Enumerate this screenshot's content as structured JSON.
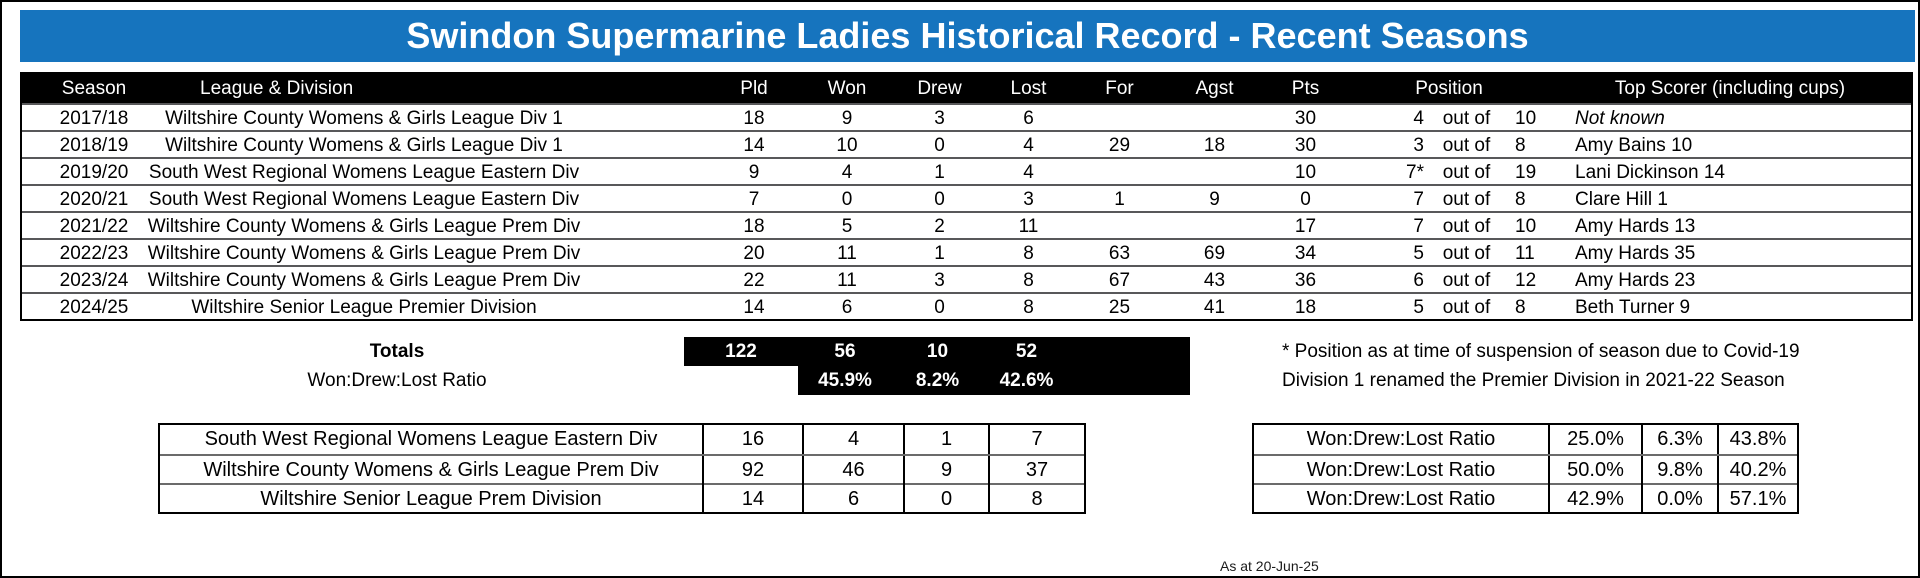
{
  "title": "Swindon Supermarine Ladies Historical Record - Recent Seasons",
  "colors": {
    "title_bar_blue": "#1674BE",
    "header_bg": "#000000",
    "totals_bg": "#000000"
  },
  "main_table": {
    "headers": {
      "season": "Season",
      "league": "League & Division",
      "pld": "Pld",
      "won": "Won",
      "drew": "Drew",
      "lost": "Lost",
      "for": "For",
      "agst": "Agst",
      "pts": "Pts",
      "position": "Position",
      "top_scorer": "Top Scorer (including cups)"
    },
    "out_of_label": "out of",
    "rows": [
      {
        "season": "2017/18",
        "league": "Wiltshire County Womens & Girls League Div 1",
        "pld": "18",
        "won": "9",
        "drew": "3",
        "lost": "6",
        "gf": "",
        "ga": "",
        "pts": "30",
        "pos": "4",
        "pos_of": "10",
        "scorer": "Not known"
      },
      {
        "season": "2018/19",
        "league": "Wiltshire County Womens & Girls League Div 1",
        "pld": "14",
        "won": "10",
        "drew": "0",
        "lost": "4",
        "gf": "29",
        "ga": "18",
        "pts": "30",
        "pos": "3",
        "pos_of": "8",
        "scorer": "Amy Bains 10"
      },
      {
        "season": "2019/20",
        "league": "South West Regional Womens League Eastern Div",
        "pld": "9",
        "won": "4",
        "drew": "1",
        "lost": "4",
        "gf": "",
        "ga": "",
        "pts": "10",
        "pos": "7*",
        "pos_of": "19",
        "scorer": "Lani Dickinson 14"
      },
      {
        "season": "2020/21",
        "league": "South West Regional Womens League Eastern Div",
        "pld": "7",
        "won": "0",
        "drew": "0",
        "lost": "3",
        "gf": "1",
        "ga": "9",
        "pts": "0",
        "pos": "7",
        "pos_of": "8",
        "scorer": "Clare Hill 1"
      },
      {
        "season": "2021/22",
        "league": "Wiltshire County Womens & Girls League Prem Div",
        "pld": "18",
        "won": "5",
        "drew": "2",
        "lost": "11",
        "gf": "",
        "ga": "",
        "pts": "17",
        "pos": "7",
        "pos_of": "10",
        "scorer": "Amy Hards 13"
      },
      {
        "season": "2022/23",
        "league": "Wiltshire County Womens & Girls League Prem Div",
        "pld": "20",
        "won": "11",
        "drew": "1",
        "lost": "8",
        "gf": "63",
        "ga": "69",
        "pts": "34",
        "pos": "5",
        "pos_of": "11",
        "scorer": "Amy Hards 35"
      },
      {
        "season": "2023/24",
        "league": "Wiltshire County Womens & Girls League Prem Div",
        "pld": "22",
        "won": "11",
        "drew": "3",
        "lost": "8",
        "gf": "67",
        "ga": "43",
        "pts": "36",
        "pos": "6",
        "pos_of": "12",
        "scorer": "Amy Hards 23"
      },
      {
        "season": "2024/25",
        "league": "Wiltshire Senior League Premier Division",
        "pld": "14",
        "won": "6",
        "drew": "0",
        "lost": "8",
        "gf": "25",
        "ga": "41",
        "pts": "18",
        "pos": "5",
        "pos_of": "8",
        "scorer": "Beth Turner 9"
      }
    ]
  },
  "totals": {
    "label": "Totals",
    "pld": "122",
    "won": "56",
    "drew": "10",
    "lost": "52"
  },
  "ratio": {
    "label": "Won:Drew:Lost Ratio",
    "won": "45.9%",
    "drew": "8.2%",
    "lost": "42.6%"
  },
  "notes": {
    "line1": "* Position as at time of suspension of season due to Covid-19",
    "line2": "Division 1 renamed the Premier Division in 2021-22 Season"
  },
  "league_summary": {
    "rows": [
      {
        "league": "South West Regional Womens League Eastern Div",
        "pld": "16",
        "won": "4",
        "drew": "1",
        "lost": "7"
      },
      {
        "league": "Wiltshire County Womens & Girls League Prem Div",
        "pld": "92",
        "won": "46",
        "drew": "9",
        "lost": "37"
      },
      {
        "league": "Wiltshire Senior League Prem Division",
        "pld": "14",
        "won": "6",
        "drew": "0",
        "lost": "8"
      }
    ]
  },
  "ratio_summary": {
    "rows": [
      {
        "label": "Won:Drew:Lost Ratio",
        "won": "25.0%",
        "drew": "6.3%",
        "lost": "43.8%"
      },
      {
        "label": "Won:Drew:Lost Ratio",
        "won": "50.0%",
        "drew": "9.8%",
        "lost": "40.2%"
      },
      {
        "label": "Won:Drew:Lost Ratio",
        "won": "42.9%",
        "drew": "0.0%",
        "lost": "57.1%"
      }
    ]
  },
  "footer": {
    "as_at": "As at 20-Jun-25"
  }
}
